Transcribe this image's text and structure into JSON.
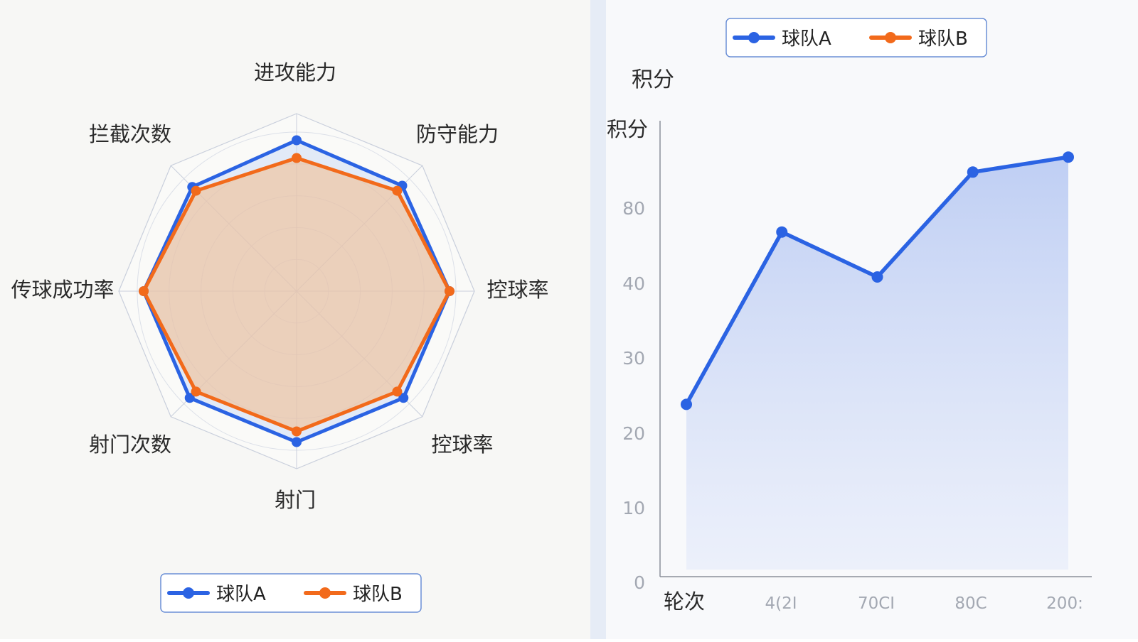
{
  "colors": {
    "team_a": "#2b63e3",
    "team_b": "#f26a1b",
    "grid": "#c9cfdc",
    "axis": "#8a8f9a",
    "tick_text": "#a3a8b2",
    "label_text": "#2a2a2a",
    "panel_left": "#f7f7f5",
    "panel_right": "#f8f9fb",
    "divider": "#e6ecf6"
  },
  "chart_data": [
    {
      "type": "radar",
      "title": "",
      "axes": [
        "进攻能力",
        "防守能力",
        "控球率",
        "控球率",
        "射门",
        "射门次数",
        "传球成功率",
        "拦截次数"
      ],
      "rmax": 100,
      "rings": 5,
      "series": [
        {
          "name": "球队A",
          "color_key": "team_a",
          "values": [
            85,
            84,
            86,
            85,
            85,
            85,
            86,
            83
          ]
        },
        {
          "name": "球队B",
          "color_key": "team_b",
          "values": [
            75,
            80,
            86,
            80,
            79,
            80,
            86,
            80
          ]
        }
      ],
      "legend": {
        "position": "bottom",
        "entries": [
          "球队A",
          "球队B"
        ]
      }
    },
    {
      "type": "area",
      "title": "积分",
      "ylabel": "积分",
      "xlabel": "轮次",
      "x": [
        "4(2I",
        "70CI",
        "80C",
        "200:"
      ],
      "x_positions": [
        2,
        3,
        4,
        5
      ],
      "ylim": [
        0,
        100
      ],
      "yticks": [
        {
          "value": 0,
          "label": "0"
        },
        {
          "value": 10,
          "label": "10"
        },
        {
          "value": 20,
          "label": "20"
        },
        {
          "value": 30,
          "label": "30"
        },
        {
          "value": 40,
          "label": "40"
        },
        {
          "value": 80,
          "label": "80"
        }
      ],
      "series": [
        {
          "name": "球队A",
          "color_key": "team_a",
          "points": [
            [
              1,
              23
            ],
            [
              2,
              46
            ],
            [
              3,
              40
            ],
            [
              4,
              54
            ],
            [
              5,
              56
            ]
          ]
        }
      ],
      "legend": {
        "position": "top",
        "entries": [
          "球队A",
          "球队B"
        ]
      }
    }
  ]
}
